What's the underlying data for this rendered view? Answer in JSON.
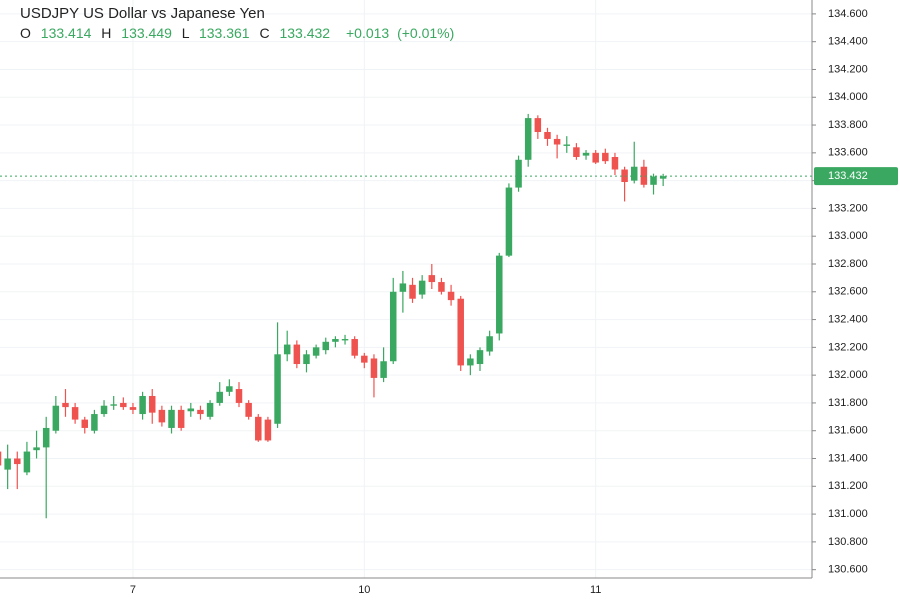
{
  "chart_data": {
    "type": "candlestick",
    "title": "USDJPY US Dollar vs Japanese Yen",
    "header": {
      "open_label": "O",
      "high_label": "H",
      "low_label": "L",
      "close_label": "C",
      "change": "+0.013",
      "change_pct": "(+0.01%)"
    },
    "categories": [
      null,
      null,
      null,
      null,
      null,
      null,
      null,
      null,
      null,
      null,
      null,
      null,
      null,
      null,
      "7",
      null,
      null,
      null,
      null,
      null,
      null,
      null,
      null,
      null,
      null,
      null,
      null,
      null,
      null,
      null,
      null,
      null,
      null,
      null,
      null,
      null,
      null,
      null,
      "10",
      null,
      null,
      null,
      null,
      null,
      null,
      null,
      null,
      null,
      null,
      null,
      null,
      null,
      null,
      null,
      null,
      null,
      null,
      null,
      null,
      null,
      null,
      null,
      "11",
      null,
      null,
      null,
      null,
      null,
      null,
      null
    ],
    "open": [
      131.45,
      131.32,
      131.4,
      131.3,
      131.46,
      131.48,
      131.6,
      131.8,
      131.77,
      131.68,
      131.6,
      131.72,
      131.78,
      131.8,
      131.77,
      131.72,
      131.85,
      131.75,
      131.62,
      131.75,
      131.74,
      131.75,
      131.7,
      131.8,
      131.88,
      131.9,
      131.8,
      131.7,
      131.68,
      131.65,
      132.15,
      132.22,
      132.08,
      132.14,
      132.18,
      132.24,
      132.25,
      132.26,
      132.14,
      132.12,
      131.98,
      132.1,
      132.6,
      132.65,
      132.58,
      132.72,
      132.67,
      132.6,
      132.55,
      132.07,
      132.08,
      132.17,
      132.3,
      132.86,
      133.35,
      133.55,
      133.85,
      133.75,
      133.7,
      133.65,
      133.64,
      133.58,
      133.6,
      133.6,
      133.57,
      133.48,
      133.4,
      133.5,
      133.37,
      133.414
    ],
    "high": [
      131.52,
      131.5,
      131.45,
      131.52,
      131.6,
      131.7,
      131.85,
      131.9,
      131.8,
      131.7,
      131.75,
      131.82,
      131.85,
      131.84,
      131.8,
      131.88,
      131.9,
      131.78,
      131.78,
      131.78,
      131.8,
      131.78,
      131.82,
      131.95,
      131.97,
      131.95,
      131.82,
      131.72,
      131.7,
      132.38,
      132.32,
      132.25,
      132.18,
      132.22,
      132.27,
      132.28,
      132.29,
      132.28,
      132.16,
      132.15,
      132.2,
      132.7,
      132.75,
      132.7,
      132.72,
      132.8,
      132.7,
      132.65,
      132.57,
      132.15,
      132.2,
      132.32,
      132.88,
      133.38,
      133.58,
      133.88,
      133.87,
      133.78,
      133.73,
      133.72,
      133.67,
      133.62,
      133.62,
      133.63,
      133.6,
      133.5,
      133.68,
      133.55,
      133.45,
      133.449
    ],
    "low": [
      131.3,
      131.18,
      131.18,
      131.28,
      131.4,
      130.97,
      131.58,
      131.7,
      131.65,
      131.58,
      131.58,
      131.7,
      131.75,
      131.75,
      131.72,
      131.68,
      131.65,
      131.63,
      131.58,
      131.6,
      131.7,
      131.68,
      131.68,
      131.78,
      131.85,
      131.77,
      131.68,
      131.52,
      131.52,
      131.62,
      132.1,
      132.05,
      132.02,
      132.12,
      132.15,
      132.2,
      132.22,
      132.12,
      132.05,
      131.84,
      131.95,
      132.08,
      132.45,
      132.52,
      132.55,
      132.62,
      132.58,
      132.5,
      132.03,
      132.0,
      132.03,
      132.14,
      132.25,
      132.85,
      133.32,
      133.5,
      133.7,
      133.65,
      133.56,
      133.6,
      133.55,
      133.55,
      133.52,
      133.52,
      133.44,
      133.25,
      133.38,
      133.35,
      133.3,
      133.361
    ],
    "close": [
      131.35,
      131.4,
      131.36,
      131.45,
      131.48,
      131.62,
      131.78,
      131.77,
      131.68,
      131.62,
      131.72,
      131.78,
      131.79,
      131.77,
      131.75,
      131.85,
      131.73,
      131.66,
      131.75,
      131.62,
      131.76,
      131.72,
      131.8,
      131.88,
      131.92,
      131.8,
      131.7,
      131.53,
      131.53,
      132.15,
      132.22,
      132.08,
      132.15,
      132.2,
      132.24,
      132.26,
      132.26,
      132.14,
      132.09,
      131.98,
      132.1,
      132.6,
      132.66,
      132.55,
      132.68,
      132.67,
      132.6,
      132.54,
      132.07,
      132.12,
      132.18,
      132.28,
      132.86,
      133.35,
      133.55,
      133.85,
      133.75,
      133.7,
      133.66,
      133.66,
      133.57,
      133.6,
      133.53,
      133.54,
      133.48,
      133.39,
      133.5,
      133.37,
      133.43,
      133.432
    ],
    "up_color": "#3aa860",
    "down_color": "#ef5350",
    "ylim": [
      130.54,
      134.7
    ],
    "yticks": [
      {
        "value": 130.6,
        "label": "130.600"
      },
      {
        "value": 130.8,
        "label": "130.800"
      },
      {
        "value": 131.0,
        "label": "131.000"
      },
      {
        "value": 131.2,
        "label": "131.200"
      },
      {
        "value": 131.4,
        "label": "131.400"
      },
      {
        "value": 131.6,
        "label": "131.600"
      },
      {
        "value": 131.8,
        "label": "131.800"
      },
      {
        "value": 132.0,
        "label": "132.000"
      },
      {
        "value": 132.2,
        "label": "132.200"
      },
      {
        "value": 132.4,
        "label": "132.400"
      },
      {
        "value": 132.6,
        "label": "132.600"
      },
      {
        "value": 132.8,
        "label": "132.800"
      },
      {
        "value": 133.0,
        "label": "133.000"
      },
      {
        "value": 133.2,
        "label": "133.200"
      },
      {
        "value": 133.4,
        "label": "133.400"
      },
      {
        "value": 133.6,
        "label": "133.600"
      },
      {
        "value": 133.8,
        "label": "133.800"
      },
      {
        "value": 134.0,
        "label": "134.000"
      },
      {
        "value": 134.2,
        "label": "134.200"
      },
      {
        "value": 134.4,
        "label": "134.400"
      },
      {
        "value": 134.6,
        "label": "134.600"
      }
    ],
    "grid": true
  }
}
